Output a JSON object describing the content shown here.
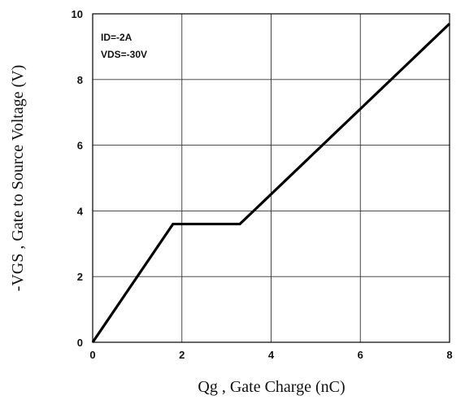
{
  "chart_data": {
    "type": "line",
    "title": "",
    "xlabel": "Qg , Gate Charge (nC)",
    "ylabel": "-VGS , Gate to Source Voltage (V)",
    "xlim": [
      0,
      8
    ],
    "ylim": [
      0,
      10
    ],
    "x_ticks": [
      "0",
      "2",
      "4",
      "6",
      "8"
    ],
    "y_ticks": [
      "0",
      "2",
      "4",
      "6",
      "8",
      "10"
    ],
    "grid": true,
    "annotations": [
      "ID=-2A",
      "VDS=-30V"
    ],
    "series": [
      {
        "x": [
          0,
          1.8,
          3.3,
          8
        ],
        "y": [
          0,
          3.6,
          3.6,
          9.7
        ]
      }
    ]
  }
}
